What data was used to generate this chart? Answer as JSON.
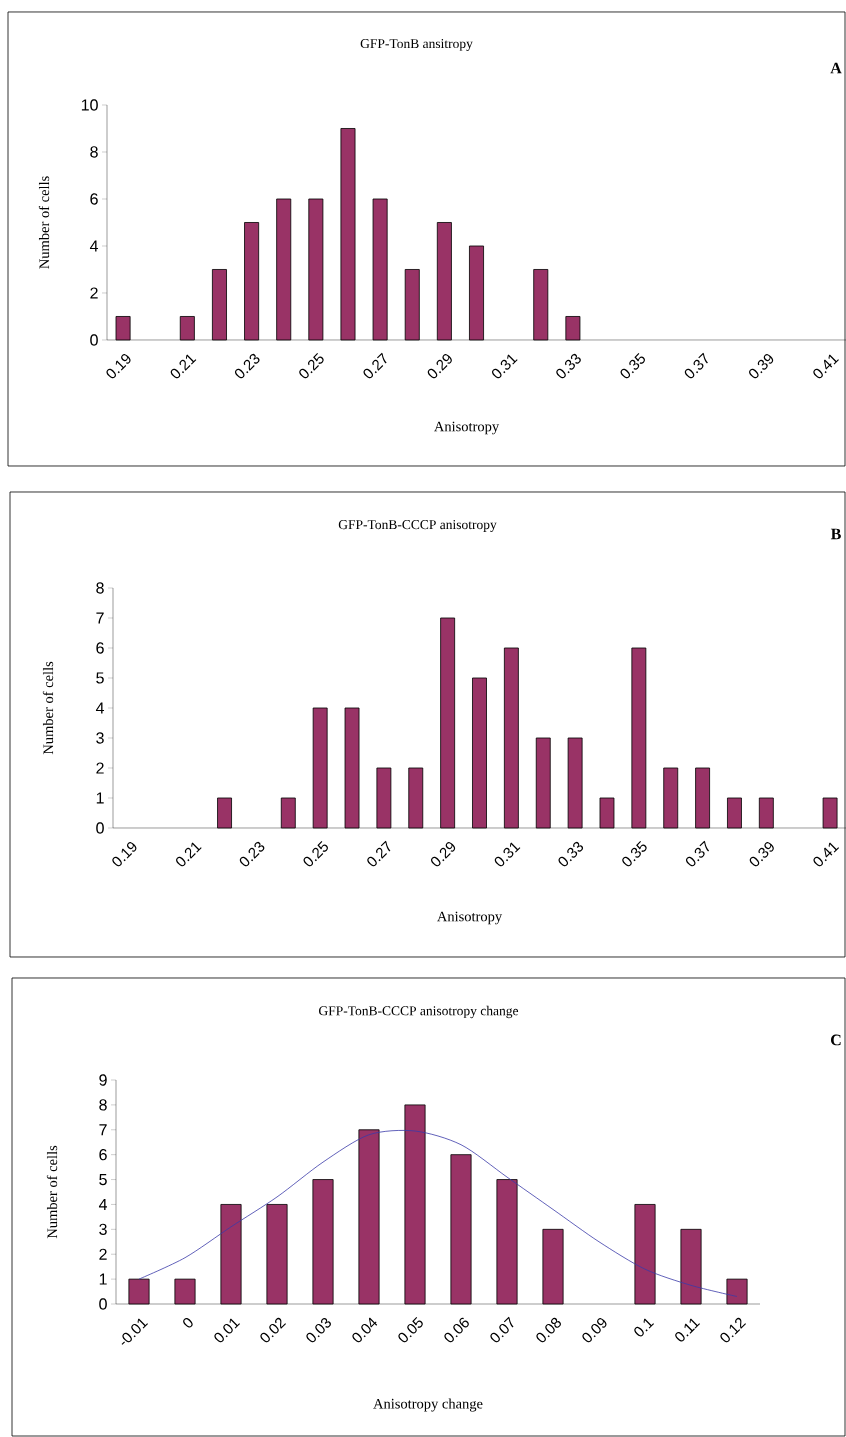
{
  "chart_data": [
    {
      "type": "bar",
      "title": "GFP-TonB ansitropy",
      "xlabel": "Anisotropy",
      "ylabel": "Number of cells",
      "annotations": [
        "A"
      ],
      "categories": [
        "0.19",
        null,
        "0.21",
        null,
        "0.23",
        null,
        "0.25",
        null,
        "0.27",
        null,
        "0.29",
        null,
        "0.31",
        null,
        "0.33",
        null,
        "0.35",
        null,
        "0.37",
        null,
        "0.39",
        null,
        "0.41"
      ],
      "values": [
        1,
        null,
        1,
        3,
        5,
        6,
        6,
        9,
        6,
        3,
        5,
        4,
        null,
        3,
        1,
        null,
        null,
        null,
        null,
        null,
        null,
        null,
        null
      ],
      "color": "#993366",
      "ylim": [
        0,
        10
      ],
      "yticks": [
        0,
        2,
        4,
        6,
        8,
        10
      ]
    },
    {
      "type": "bar",
      "title": "GFP-TonB-CCCP anisotropy",
      "xlabel": "Anisotropy",
      "ylabel": "Number of cells",
      "annotations": [
        "B"
      ],
      "categories": [
        "0.19",
        null,
        "0.21",
        null,
        "0.23",
        null,
        "0.25",
        null,
        "0.27",
        null,
        "0.29",
        null,
        "0.31",
        null,
        "0.33",
        null,
        "0.35",
        null,
        "0.37",
        null,
        "0.39",
        null,
        "0.41"
      ],
      "values": [
        null,
        null,
        null,
        1,
        null,
        1,
        4,
        4,
        2,
        2,
        7,
        5,
        6,
        3,
        3,
        1,
        6,
        2,
        2,
        1,
        1,
        null,
        1
      ],
      "color": "#993366",
      "ylim": [
        0,
        8
      ],
      "yticks": [
        0,
        1,
        2,
        3,
        4,
        5,
        6,
        7,
        8
      ]
    },
    {
      "type": "bar",
      "title": "GFP-TonB-CCCP anisotropy change",
      "xlabel": "Anisotropy change",
      "ylabel": "Number of cells",
      "annotations": [
        "C"
      ],
      "categories": [
        "-0.01",
        "0",
        "0.01",
        "0.02",
        "0.03",
        "0.04",
        "0.05",
        "0.06",
        "0.07",
        "0.08",
        "0.09",
        "0.1",
        "0.11",
        "0.12"
      ],
      "series": [
        {
          "type": "bar",
          "color": "#993366",
          "values": [
            1,
            1,
            4,
            4,
            5,
            7,
            8,
            6,
            5,
            3,
            null,
            4,
            3,
            1
          ]
        },
        {
          "type": "line",
          "color": "#3a3aa8",
          "values": [
            1.0,
            1.86,
            3.1,
            4.3,
            5.7,
            6.8,
            6.95,
            6.4,
            5.1,
            3.8,
            2.5,
            1.4,
            0.75,
            0.3
          ]
        }
      ],
      "ylim": [
        0,
        9
      ],
      "yticks": [
        0,
        1,
        2,
        3,
        4,
        5,
        6,
        7,
        8,
        9
      ]
    }
  ]
}
